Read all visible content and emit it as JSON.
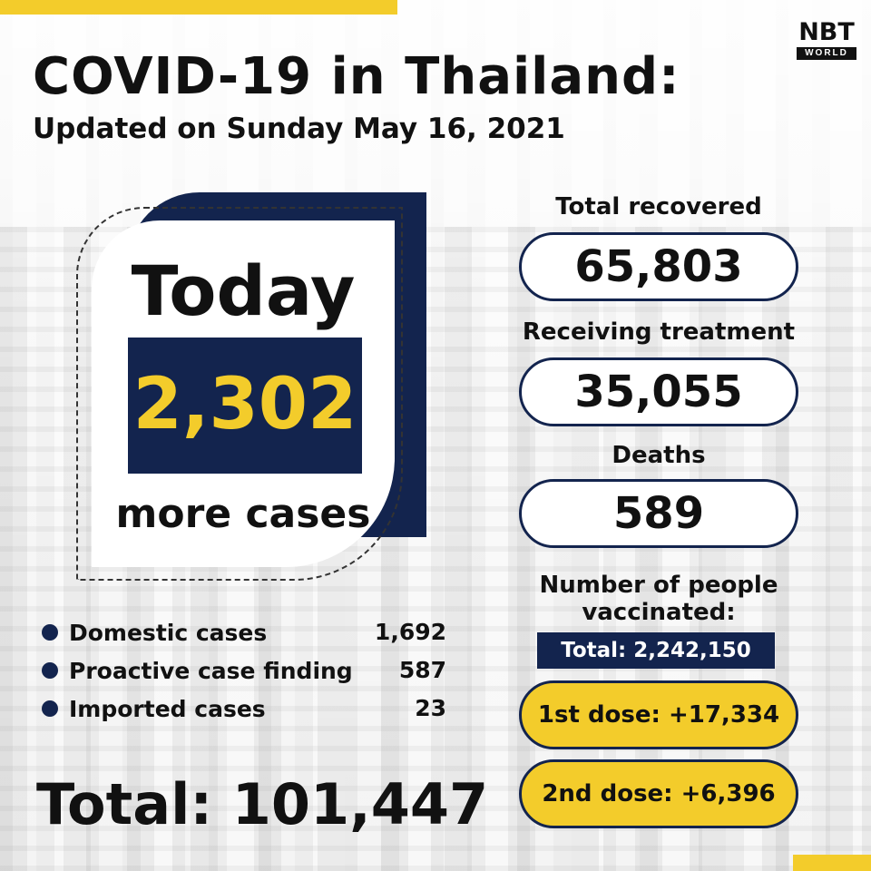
{
  "header": {
    "title": "COVID-19 in Thailand:",
    "subtitle": "Updated on Sunday May 16, 2021"
  },
  "logo": {
    "main": "NBT",
    "sub": "WORLD"
  },
  "today_card": {
    "label": "Today",
    "new_cases": "2,302",
    "caption": "more cases"
  },
  "breakdown": [
    {
      "label": "Domestic cases",
      "value": "1,692"
    },
    {
      "label": "Proactive case finding",
      "value": "587"
    },
    {
      "label": "Imported cases",
      "value": "23"
    }
  ],
  "total": "Total: 101,447",
  "stats": {
    "recovered": {
      "label": "Total recovered",
      "value": "65,803"
    },
    "treatment": {
      "label": "Receiving treatment",
      "value": "35,055"
    },
    "deaths": {
      "label": "Deaths",
      "value": "589"
    }
  },
  "vaccination": {
    "label_line1": "Number of people",
    "label_line2": "vaccinated:",
    "total": "Total: 2,242,150",
    "first_dose": "1st dose: +17,334",
    "second_dose": "2nd dose: +6,396"
  },
  "colors": {
    "navy": "#13244e",
    "yellow": "#f3cc2b"
  }
}
